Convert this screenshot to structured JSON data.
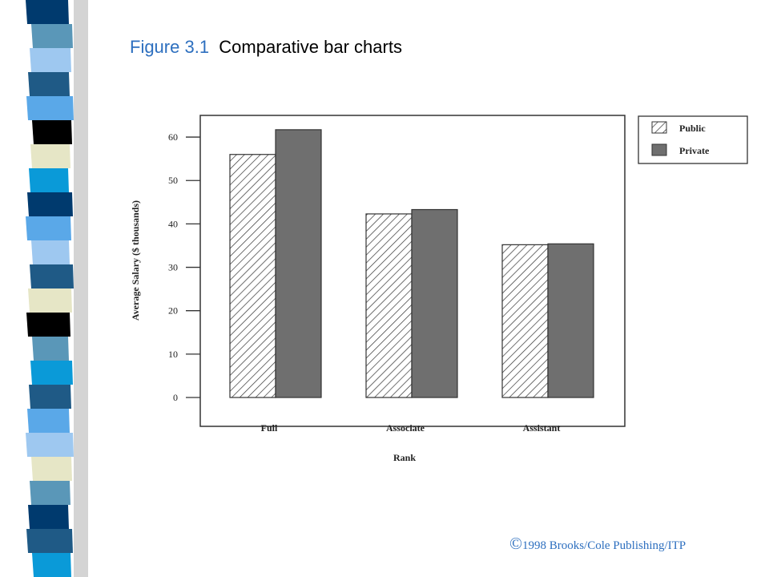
{
  "title": {
    "figure_number": "Figure 3.1",
    "text": "Comparative bar charts"
  },
  "copyright": {
    "symbol": "©",
    "text": "1998 Brooks/Cole Publishing/ITP"
  },
  "colors": {
    "public_hatch": "#333333",
    "private_fill": "#6f6f6f",
    "title_accent": "#2d6fbf",
    "stripe_palette": [
      "#5a97b8",
      "#1f5a86",
      "#5aa8e8",
      "#e6e6c6",
      "#000000",
      "#0a9ad8",
      "#003a6e",
      "#9ec8f0"
    ]
  },
  "chart_data": {
    "type": "bar",
    "categories": [
      "Full",
      "Associate",
      "Assistant"
    ],
    "series": [
      {
        "name": "Public",
        "values": [
          56,
          42.3,
          35.2
        ],
        "pattern": "diagonal-hatch"
      },
      {
        "name": "Private",
        "values": [
          61.7,
          43.3,
          35.4
        ],
        "pattern": "solid-gray"
      }
    ],
    "xlabel": "Rank",
    "ylabel": "Average Salary ($ thousands)",
    "ylim": [
      0,
      65
    ],
    "yticks": [
      0,
      10,
      20,
      30,
      40,
      50,
      60
    ],
    "legend_placement": "top-right-outside",
    "grid": false
  }
}
